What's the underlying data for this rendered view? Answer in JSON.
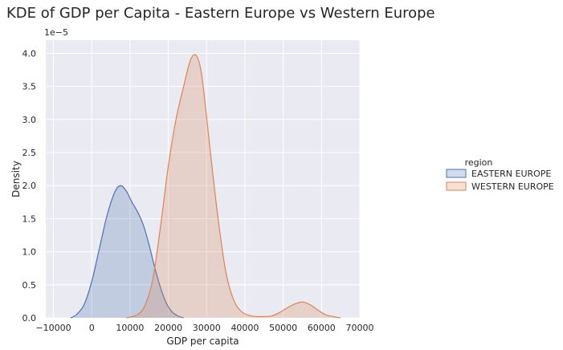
{
  "chart_data": {
    "type": "area",
    "title": "KDE of GDP per Capita - Eastern Europe vs Western Europe",
    "xlabel": "GDP per capita",
    "ylabel": "Density",
    "y_offset_text": "1e−5",
    "y_scale": 1e-05,
    "xlim": [
      -12000,
      70000
    ],
    "ylim": [
      0,
      4.2
    ],
    "x_ticks": [
      -10000,
      0,
      10000,
      20000,
      30000,
      40000,
      50000,
      60000,
      70000
    ],
    "x_tick_labels": [
      "−10000",
      "0",
      "10000",
      "20000",
      "30000",
      "40000",
      "50000",
      "60000",
      "70000"
    ],
    "y_ticks": [
      0.0,
      0.5,
      1.0,
      1.5,
      2.0,
      2.5,
      3.0,
      3.5,
      4.0
    ],
    "y_tick_labels": [
      "0.0",
      "0.5",
      "1.0",
      "1.5",
      "2.0",
      "2.5",
      "3.0",
      "3.5",
      "4.0"
    ],
    "grid": true,
    "legend_title": "region",
    "legend_position": "right",
    "series": [
      {
        "name": "EASTERN EUROPE",
        "color": "#4c72b0",
        "x": [
          -5500,
          -4000,
          -2000,
          0,
          2000,
          4000,
          6000,
          7500,
          9000,
          10500,
          12000,
          13500,
          15000,
          16500,
          18000,
          19500,
          21000,
          22500,
          24000
        ],
        "y": [
          0.0,
          0.05,
          0.2,
          0.55,
          1.05,
          1.55,
          1.9,
          2.0,
          1.92,
          1.75,
          1.6,
          1.4,
          1.1,
          0.75,
          0.45,
          0.22,
          0.09,
          0.03,
          0.0
        ]
      },
      {
        "name": "WESTERN EUROPE",
        "color": "#dd8452",
        "x": [
          9000,
          12000,
          14000,
          16000,
          18000,
          20000,
          22000,
          24000,
          25500,
          26500,
          27500,
          28500,
          29500,
          31000,
          33000,
          35000,
          37000,
          39000,
          41000,
          43000,
          45000,
          47000,
          49000,
          51000,
          53000,
          55000,
          57000,
          59000,
          61000,
          63000,
          65000
        ],
        "y": [
          0.0,
          0.05,
          0.2,
          0.6,
          1.4,
          2.3,
          3.0,
          3.5,
          3.85,
          3.97,
          3.95,
          3.75,
          3.3,
          2.5,
          1.5,
          0.7,
          0.28,
          0.1,
          0.04,
          0.02,
          0.02,
          0.03,
          0.08,
          0.15,
          0.21,
          0.24,
          0.2,
          0.12,
          0.05,
          0.02,
          0.0
        ]
      }
    ]
  }
}
